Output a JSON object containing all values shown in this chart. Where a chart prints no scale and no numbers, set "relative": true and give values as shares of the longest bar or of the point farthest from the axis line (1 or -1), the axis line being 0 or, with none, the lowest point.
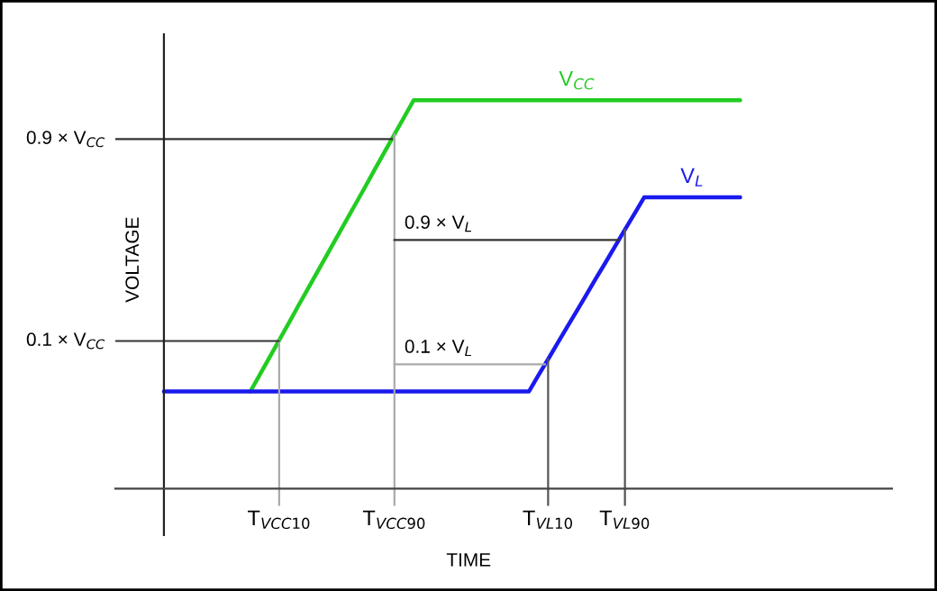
{
  "chart_data": {
    "type": "line",
    "relative": true,
    "xlabel": "TIME",
    "ylabel": "VOLTAGE",
    "categories": [
      null,
      null,
      null,
      null,
      null,
      null,
      null,
      null,
      null,
      null,
      null,
      null,
      "T$_{VCC10}$",
      null,
      null,
      null,
      null,
      null,
      null,
      null,
      null,
      null,
      null,
      null,
      "T$_{VCC90}$",
      null,
      null,
      null,
      null,
      null,
      null,
      null,
      null,
      null,
      null,
      null,
      null,
      null,
      null,
      null,
      "T$_{VL10}$",
      null,
      null,
      null,
      null,
      null,
      null,
      null,
      "T$_{VL90}$",
      null,
      null,
      null,
      null,
      null,
      null,
      null,
      null,
      null,
      null,
      null,
      null
    ],
    "series": [
      {
        "name": "V$_{CC}$",
        "color": "#22cc22",
        "values": [
          null,
          null,
          null,
          null,
          null,
          null,
          null,
          null,
          null,
          0.25,
          0.294,
          0.338,
          0.382,
          0.426,
          0.471,
          0.515,
          0.559,
          0.603,
          0.647,
          0.691,
          0.735,
          0.779,
          0.824,
          0.868,
          0.912,
          0.956,
          1,
          1,
          1,
          1,
          1,
          1,
          1,
          1,
          1,
          1,
          1,
          1,
          1,
          1,
          1,
          1,
          1,
          1,
          1,
          1,
          1,
          1,
          1,
          1,
          1,
          1,
          1,
          1,
          1,
          1,
          1,
          1,
          1,
          1,
          1
        ]
      },
      {
        "name": "V$_{L}$",
        "color": "#1a1aee",
        "values": [
          0.25,
          0.25,
          0.25,
          0.25,
          0.25,
          0.25,
          0.25,
          0.25,
          0.25,
          0.25,
          0.25,
          0.25,
          0.25,
          0.25,
          0.25,
          0.25,
          0.25,
          0.25,
          0.25,
          0.25,
          0.25,
          0.25,
          0.25,
          0.25,
          0.25,
          0.25,
          0.25,
          0.25,
          0.25,
          0.25,
          0.25,
          0.25,
          0.25,
          0.25,
          0.25,
          0.25,
          0.25,
          0.25,
          0.25,
          0.292,
          0.333,
          0.375,
          0.417,
          0.458,
          0.5,
          0.542,
          0.583,
          0.625,
          0.667,
          0.708,
          0.75,
          0.75,
          0.75,
          0.75,
          0.75,
          0.75,
          0.75,
          0.75,
          0.75,
          0.75,
          0.75
        ]
      }
    ],
    "ref_lines": [
      {
        "axis": "y",
        "value": 0.9,
        "label": "0.9 × V$_{CC}$",
        "color": "#333333"
      },
      {
        "axis": "y",
        "value": 0.38,
        "label": "0.1 × V$_{CC}$",
        "color": "#333333"
      },
      {
        "axis": "y",
        "value": 0.64,
        "label": "0.9 × V$_{L}$",
        "color": "#333333"
      },
      {
        "axis": "y",
        "value": 0.32,
        "label": "0.1 × V$_{L}$",
        "color": "#aaaaaa"
      },
      {
        "axis": "x",
        "value": "T$_{VCC10}$",
        "color": "#aaaaaa"
      },
      {
        "axis": "x",
        "value": "T$_{VCC90}$",
        "color": "#aaaaaa"
      },
      {
        "axis": "x",
        "value": "T$_{VL10}$",
        "color": "#555555"
      },
      {
        "axis": "x",
        "value": "T$_{VL90}$",
        "color": "#555555"
      }
    ]
  }
}
